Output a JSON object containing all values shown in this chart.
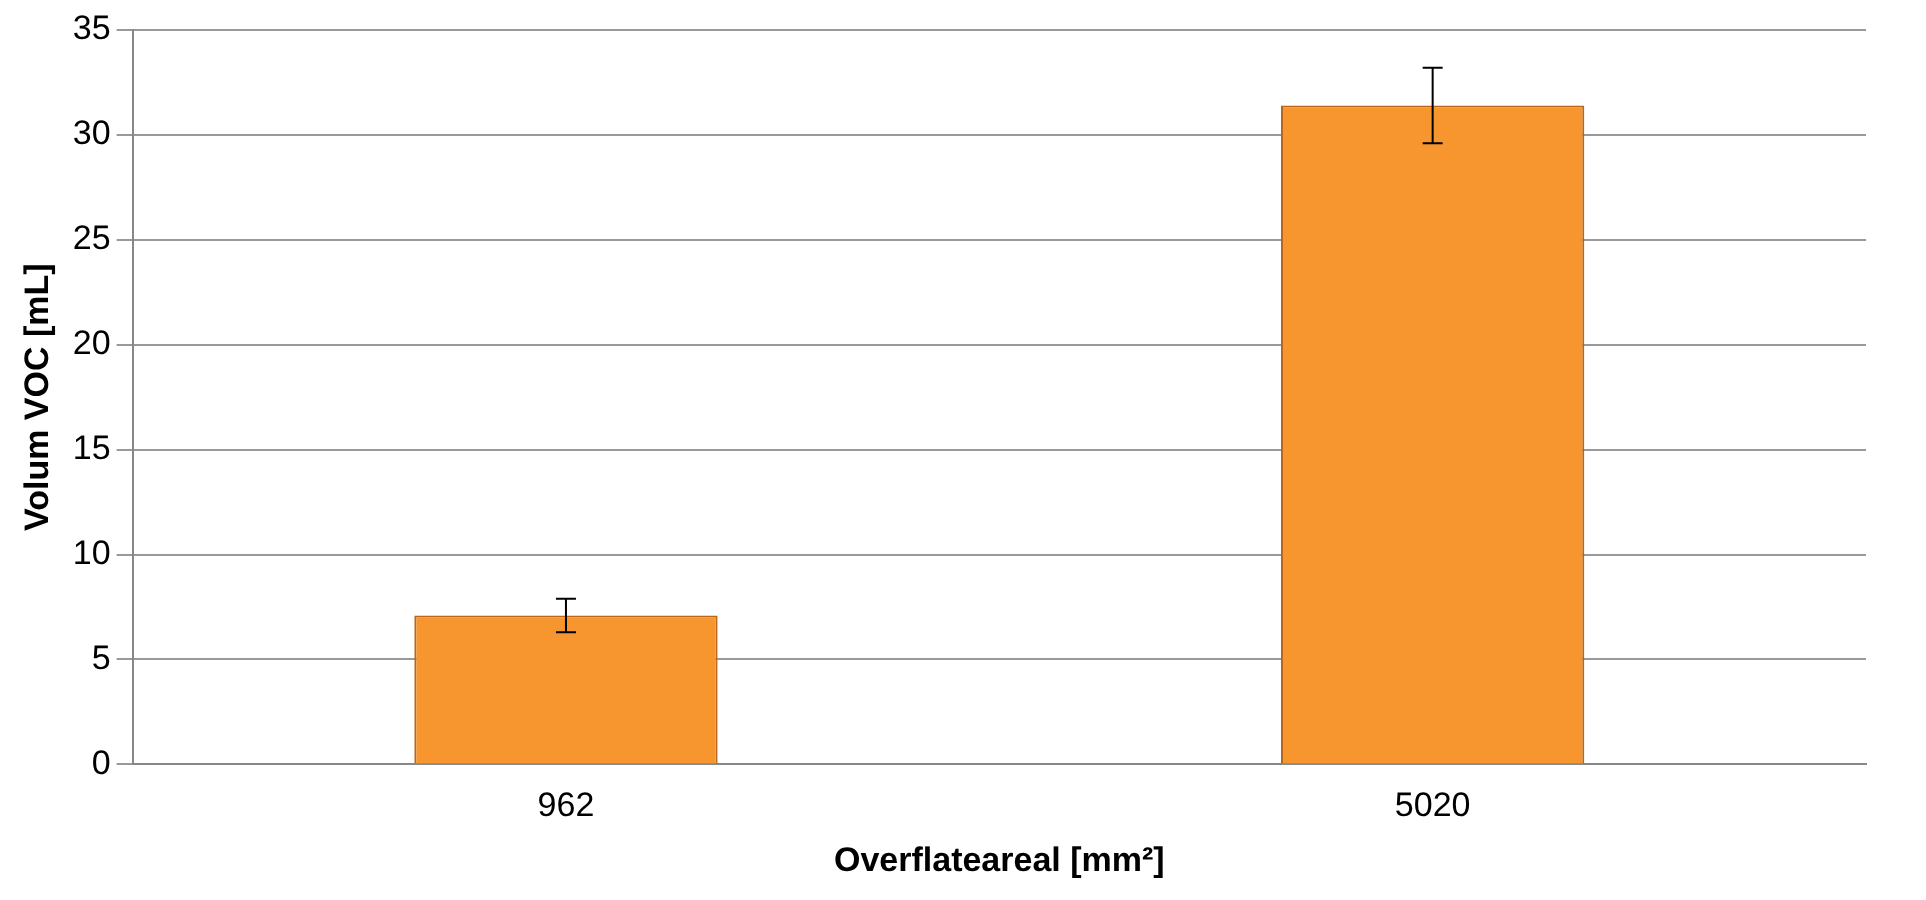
{
  "chart_data": {
    "type": "bar",
    "xlabel": "Overflateareal [mm²]",
    "ylabel": "Volum VOC [mL]",
    "categories": [
      "962",
      "5020"
    ],
    "series": [
      {
        "color": "#f7962e",
        "values": [
          7.1,
          31.4
        ],
        "errors": [
          0.8,
          1.8
        ]
      }
    ],
    "ylim": [
      0,
      35
    ],
    "yticks": [
      0,
      5,
      10,
      15,
      20,
      25,
      30,
      35
    ],
    "grid": "y",
    "legend": false
  }
}
